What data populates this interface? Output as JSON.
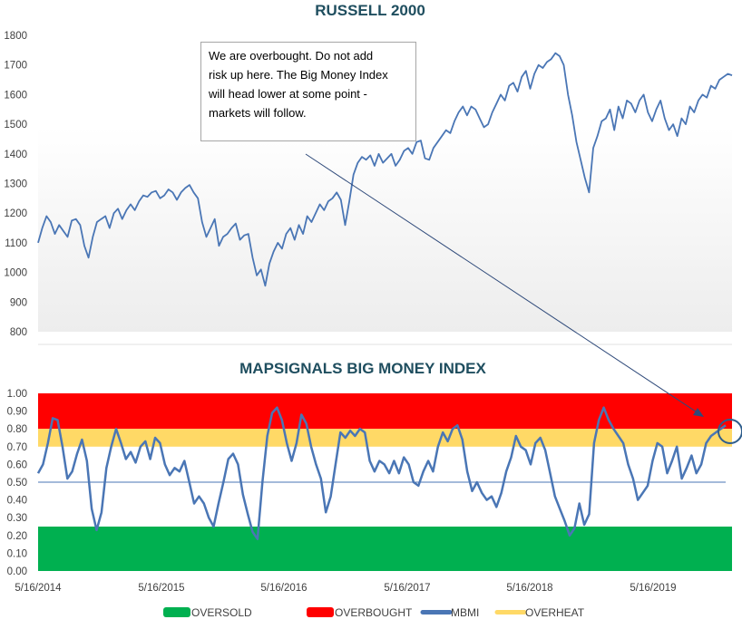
{
  "chart_data": [
    {
      "type": "line",
      "title": "RUSSELL 2000",
      "ylim": [
        800,
        1800
      ],
      "yticks": [
        "1800",
        "1700",
        "1600",
        "1500",
        "1400",
        "1300",
        "1200",
        "1100",
        "1000",
        "900",
        "800"
      ],
      "grid": false,
      "series": [
        {
          "color": "#4a76b5",
          "values": [
            1100,
            1150,
            1190,
            1170,
            1130,
            1160,
            1140,
            1120,
            1175,
            1180,
            1160,
            1090,
            1050,
            1120,
            1170,
            1180,
            1190,
            1150,
            1200,
            1215,
            1180,
            1210,
            1230,
            1210,
            1240,
            1260,
            1255,
            1270,
            1275,
            1250,
            1260,
            1280,
            1270,
            1245,
            1270,
            1285,
            1295,
            1270,
            1250,
            1170,
            1120,
            1150,
            1180,
            1090,
            1120,
            1130,
            1150,
            1165,
            1110,
            1125,
            1130,
            1050,
            990,
            1010,
            955,
            1030,
            1070,
            1100,
            1080,
            1130,
            1150,
            1110,
            1160,
            1130,
            1190,
            1170,
            1200,
            1230,
            1210,
            1240,
            1250,
            1270,
            1245,
            1160,
            1240,
            1330,
            1370,
            1390,
            1380,
            1395,
            1360,
            1400,
            1370,
            1385,
            1400,
            1360,
            1380,
            1410,
            1420,
            1400,
            1440,
            1445,
            1385,
            1380,
            1420,
            1440,
            1460,
            1480,
            1470,
            1510,
            1540,
            1560,
            1530,
            1560,
            1550,
            1520,
            1490,
            1500,
            1540,
            1570,
            1600,
            1580,
            1630,
            1640,
            1610,
            1660,
            1680,
            1620,
            1670,
            1700,
            1690,
            1710,
            1720,
            1740,
            1730,
            1700,
            1600,
            1530,
            1440,
            1380,
            1320,
            1270,
            1420,
            1460,
            1510,
            1520,
            1550,
            1480,
            1560,
            1520,
            1580,
            1570,
            1540,
            1580,
            1600,
            1540,
            1510,
            1550,
            1580,
            1520,
            1480,
            1500,
            1460,
            1520,
            1500,
            1560,
            1540,
            1580,
            1600,
            1590,
            1630,
            1620,
            1650,
            1660,
            1670,
            1665
          ]
        }
      ]
    },
    {
      "type": "line",
      "title": "MAPSIGNALS BIG MONEY INDEX",
      "ylim": [
        0,
        1
      ],
      "yticks": [
        "1.00",
        "0.90",
        "0.80",
        "0.70",
        "0.60",
        "0.50",
        "0.40",
        "0.30",
        "0.20",
        "0.10",
        "0.00"
      ],
      "xticks": [
        "5/16/2014",
        "5/16/2015",
        "5/16/2016",
        "5/16/2017",
        "5/16/2018",
        "5/16/2019"
      ],
      "grid": false,
      "reference_line": 0.5,
      "bands": [
        {
          "name": "OVERBOUGHT",
          "from": 0.8,
          "to": 1.0,
          "color": "#ff0000"
        },
        {
          "name": "OVERHEAT",
          "from": 0.7,
          "to": 0.8,
          "color": "#ffd966"
        },
        {
          "name": "OVERSOLD",
          "from": 0.0,
          "to": 0.25,
          "color": "#00b050"
        }
      ],
      "series": [
        {
          "name": "MBMI",
          "color": "#4a76b5",
          "values": [
            0.55,
            0.6,
            0.72,
            0.86,
            0.85,
            0.7,
            0.52,
            0.56,
            0.66,
            0.74,
            0.62,
            0.35,
            0.23,
            0.33,
            0.58,
            0.7,
            0.8,
            0.72,
            0.63,
            0.67,
            0.61,
            0.7,
            0.73,
            0.63,
            0.75,
            0.72,
            0.6,
            0.54,
            0.58,
            0.56,
            0.62,
            0.5,
            0.38,
            0.42,
            0.38,
            0.3,
            0.25,
            0.38,
            0.5,
            0.63,
            0.66,
            0.6,
            0.43,
            0.32,
            0.22,
            0.18,
            0.5,
            0.76,
            0.89,
            0.92,
            0.85,
            0.72,
            0.62,
            0.72,
            0.88,
            0.83,
            0.7,
            0.6,
            0.52,
            0.33,
            0.42,
            0.6,
            0.78,
            0.75,
            0.79,
            0.76,
            0.8,
            0.78,
            0.62,
            0.56,
            0.62,
            0.6,
            0.55,
            0.62,
            0.55,
            0.64,
            0.6,
            0.5,
            0.48,
            0.56,
            0.62,
            0.56,
            0.7,
            0.78,
            0.73,
            0.8,
            0.82,
            0.74,
            0.56,
            0.45,
            0.5,
            0.44,
            0.4,
            0.42,
            0.36,
            0.44,
            0.56,
            0.64,
            0.76,
            0.7,
            0.68,
            0.6,
            0.72,
            0.75,
            0.68,
            0.55,
            0.42,
            0.35,
            0.28,
            0.2,
            0.24,
            0.38,
            0.26,
            0.32,
            0.72,
            0.85,
            0.92,
            0.85,
            0.8,
            0.76,
            0.72,
            0.6,
            0.52,
            0.4,
            0.44,
            0.48,
            0.62,
            0.72,
            0.7,
            0.55,
            0.62,
            0.7,
            0.52,
            0.58,
            0.65,
            0.55,
            0.6,
            0.72,
            0.76,
            0.78,
            0.8,
            0.82
          ]
        }
      ]
    }
  ],
  "annotation": {
    "lines": [
      "We are overbought. Do not add",
      "risk up here. The Big Money Index",
      "will head lower at some point -",
      "markets will follow."
    ]
  },
  "legend": {
    "items": [
      {
        "label": "OVERSOLD",
        "color": "#00b050",
        "kind": "box"
      },
      {
        "label": "OVERBOUGHT",
        "color": "#ff0000",
        "kind": "box"
      },
      {
        "label": "MBMI",
        "color": "#4a76b5",
        "kind": "line"
      },
      {
        "label": "OVERHEAT",
        "color": "#ffd966",
        "kind": "line"
      }
    ]
  },
  "colors": {
    "arrow": "#2f4a7a",
    "callout_circle": "#2f5e8c",
    "title": "#1f4e5f"
  }
}
